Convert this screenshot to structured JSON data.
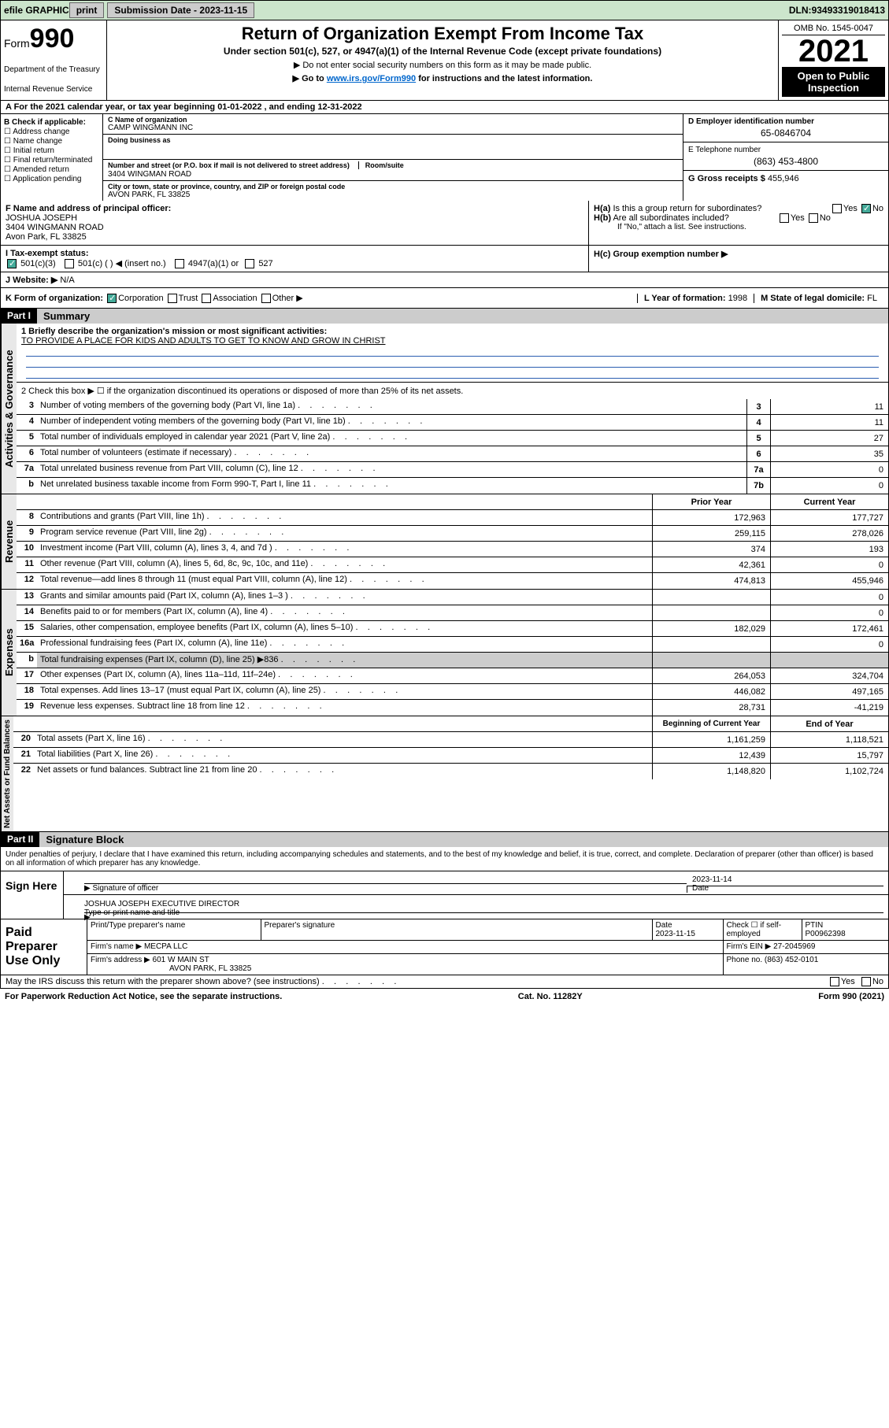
{
  "colors": {
    "header_bg": "#cce5cc",
    "black": "#000000",
    "link": "#2a5db0",
    "shade": "#dddddd",
    "btn_bg": "#cccccc",
    "check_green": "#44aa99"
  },
  "fonts": {
    "base_size": 11,
    "title_size": 22,
    "year_size": 40,
    "form_big": 34
  },
  "top_bar": {
    "efile": "efile GRAPHIC",
    "print": "print",
    "sub_label": "Submission Date - ",
    "sub_date": "2023-11-15",
    "dln_label": "DLN: ",
    "dln": "93493319018413"
  },
  "header": {
    "form_label": "Form",
    "form_num": "990",
    "dept": "Department of the Treasury",
    "irs": "Internal Revenue Service",
    "title": "Return of Organization Exempt From Income Tax",
    "sub1": "Under section 501(c), 527, or 4947(a)(1) of the Internal Revenue Code (except private foundations)",
    "sub2": "▶ Do not enter social security numbers on this form as it may be made public.",
    "sub3_pre": "▶ Go to ",
    "sub3_link": "www.irs.gov/Form990",
    "sub3_post": " for instructions and the latest information.",
    "omb": "OMB No. 1545-0047",
    "year": "2021",
    "open": "Open to Public Inspection"
  },
  "row_A": "A For the 2021 calendar year, or tax year beginning 01-01-2022   , and ending 12-31-2022",
  "col_B": {
    "label": "B Check if applicable:",
    "items": [
      "Address change",
      "Name change",
      "Initial return",
      "Final return/terminated",
      "Amended return",
      "Application pending"
    ]
  },
  "col_C": {
    "name_lbl": "C Name of organization",
    "name": "CAMP WINGMANN INC",
    "dba_lbl": "Doing business as",
    "dba": "",
    "addr_lbl": "Number and street (or P.O. box if mail is not delivered to street address)",
    "room_lbl": "Room/suite",
    "addr": "3404 WINGMAN ROAD",
    "city_lbl": "City or town, state or province, country, and ZIP or foreign postal code",
    "city": "AVON PARK, FL  33825"
  },
  "col_D": {
    "ein_lbl": "D Employer identification number",
    "ein": "65-0846704",
    "tel_lbl": "E Telephone number",
    "tel": "(863) 453-4800",
    "gross_lbl": "G Gross receipts $ ",
    "gross": "455,946"
  },
  "row_F": {
    "lbl": "F Name and address of principal officer:",
    "name": "JOSHUA JOSEPH",
    "addr1": "3404 WINGMANN ROAD",
    "addr2": "Avon Park, FL  33825"
  },
  "row_H": {
    "ha": "H(a)  Is this a group return for subordinates?",
    "ha_yes": "Yes",
    "ha_no": "No",
    "hb": "H(b)  Are all subordinates included?",
    "hb_yes": "Yes",
    "hb_no": "No",
    "hb_note": "If \"No,\" attach a list. See instructions.",
    "hc": "H(c)  Group exemption number ▶"
  },
  "row_I": {
    "lbl": "I   Tax-exempt status:",
    "o1": "501(c)(3)",
    "o2": "501(c) (  ) ◀ (insert no.)",
    "o3": "4947(a)(1) or",
    "o4": "527"
  },
  "row_J": {
    "lbl": "J   Website: ▶",
    "val": "N/A"
  },
  "row_K": {
    "lbl": "K Form of organization:",
    "o1": "Corporation",
    "o2": "Trust",
    "o3": "Association",
    "o4": "Other ▶",
    "L_lbl": "L Year of formation: ",
    "L_val": "1998",
    "M_lbl": "M State of legal domicile: ",
    "M_val": "FL"
  },
  "part1": {
    "header": "Part I",
    "title": "Summary",
    "line1_lbl": "1  Briefly describe the organization's mission or most significant activities:",
    "line1_val": "TO PROVIDE A PLACE FOR KIDS AND ADULTS TO GET TO KNOW AND GROW IN CHRIST",
    "line2": "2   Check this box ▶ ☐  if the organization discontinued its operations or disposed of more than 25% of its net assets.",
    "vert_labels": {
      "a": "Activities & Governance",
      "b": "Revenue",
      "c": "Expenses",
      "d": "Net Assets or Fund Balances"
    },
    "gov_rows": [
      {
        "n": "3",
        "d": "Number of voting members of the governing body (Part VI, line 1a)",
        "box": "3",
        "v": "11"
      },
      {
        "n": "4",
        "d": "Number of independent voting members of the governing body (Part VI, line 1b)",
        "box": "4",
        "v": "11"
      },
      {
        "n": "5",
        "d": "Total number of individuals employed in calendar year 2021 (Part V, line 2a)",
        "box": "5",
        "v": "27"
      },
      {
        "n": "6",
        "d": "Total number of volunteers (estimate if necessary)",
        "box": "6",
        "v": "35"
      },
      {
        "n": "7a",
        "d": "Total unrelated business revenue from Part VIII, column (C), line 12",
        "box": "7a",
        "v": "0"
      },
      {
        "n": "b",
        "d": "Net unrelated business taxable income from Form 990-T, Part I, line 11",
        "box": "7b",
        "v": "0"
      }
    ],
    "col_hdr_prior": "Prior Year",
    "col_hdr_current": "Current Year",
    "rev_rows": [
      {
        "n": "8",
        "d": "Contributions and grants (Part VIII, line 1h)",
        "p": "172,963",
        "c": "177,727"
      },
      {
        "n": "9",
        "d": "Program service revenue (Part VIII, line 2g)",
        "p": "259,115",
        "c": "278,026"
      },
      {
        "n": "10",
        "d": "Investment income (Part VIII, column (A), lines 3, 4, and 7d )",
        "p": "374",
        "c": "193"
      },
      {
        "n": "11",
        "d": "Other revenue (Part VIII, column (A), lines 5, 6d, 8c, 9c, 10c, and 11e)",
        "p": "42,361",
        "c": "0"
      },
      {
        "n": "12",
        "d": "Total revenue—add lines 8 through 11 (must equal Part VIII, column (A), line 12)",
        "p": "474,813",
        "c": "455,946"
      }
    ],
    "exp_rows": [
      {
        "n": "13",
        "d": "Grants and similar amounts paid (Part IX, column (A), lines 1–3 )",
        "p": "",
        "c": "0"
      },
      {
        "n": "14",
        "d": "Benefits paid to or for members (Part IX, column (A), line 4)",
        "p": "",
        "c": "0"
      },
      {
        "n": "15",
        "d": "Salaries, other compensation, employee benefits (Part IX, column (A), lines 5–10)",
        "p": "182,029",
        "c": "172,461"
      },
      {
        "n": "16a",
        "d": "Professional fundraising fees (Part IX, column (A), line 11e)",
        "p": "",
        "c": "0"
      },
      {
        "n": "b",
        "d": "Total fundraising expenses (Part IX, column (D), line 25) ▶836",
        "p": null,
        "c": null,
        "shade": true
      },
      {
        "n": "17",
        "d": "Other expenses (Part IX, column (A), lines 11a–11d, 11f–24e)",
        "p": "264,053",
        "c": "324,704"
      },
      {
        "n": "18",
        "d": "Total expenses. Add lines 13–17 (must equal Part IX, column (A), line 25)",
        "p": "446,082",
        "c": "497,165"
      },
      {
        "n": "19",
        "d": "Revenue less expenses. Subtract line 18 from line 12",
        "p": "28,731",
        "c": "-41,219"
      }
    ],
    "net_hdr_begin": "Beginning of Current Year",
    "net_hdr_end": "End of Year",
    "net_rows": [
      {
        "n": "20",
        "d": "Total assets (Part X, line 16)",
        "p": "1,161,259",
        "c": "1,118,521"
      },
      {
        "n": "21",
        "d": "Total liabilities (Part X, line 26)",
        "p": "12,439",
        "c": "15,797"
      },
      {
        "n": "22",
        "d": "Net assets or fund balances. Subtract line 21 from line 20",
        "p": "1,148,820",
        "c": "1,102,724"
      }
    ]
  },
  "part2": {
    "header": "Part II",
    "title": "Signature Block",
    "declare": "Under penalties of perjury, I declare that I have examined this return, including accompanying schedules and statements, and to the best of my knowledge and belief, it is true, correct, and complete. Declaration of preparer (other than officer) is based on all information of which preparer has any knowledge.",
    "sign_here": "Sign Here",
    "sig_officer_lbl": "Signature of officer",
    "date_lbl": "Date",
    "sig_date": "2023-11-14",
    "officer_name": "JOSHUA JOSEPH  EXECUTIVE DIRECTOR",
    "officer_name_lbl": "Type or print name and title",
    "paid_prep": "Paid Preparer Use Only",
    "prep_hdr": [
      "Print/Type preparer's name",
      "Preparer's signature",
      "Date",
      "Check ☐ if self-employed",
      "PTIN"
    ],
    "prep_date": "2023-11-15",
    "ptin": "P00962398",
    "firm_name_lbl": "Firm's name    ▶ ",
    "firm_name": "MECPA LLC",
    "firm_ein_lbl": "Firm's EIN ▶ ",
    "firm_ein": "27-2045969",
    "firm_addr_lbl": "Firm's address ▶ ",
    "firm_addr1": "601 W MAIN ST",
    "firm_addr2": "AVON PARK, FL  33825",
    "phone_lbl": "Phone no. ",
    "phone": "(863) 452-0101",
    "discuss": "May the IRS discuss this return with the preparer shown above? (see instructions)",
    "yes": "Yes",
    "no": "No"
  },
  "footer": {
    "pra": "For Paperwork Reduction Act Notice, see the separate instructions.",
    "cat": "Cat. No. 11282Y",
    "form": "Form 990 (2021)"
  }
}
